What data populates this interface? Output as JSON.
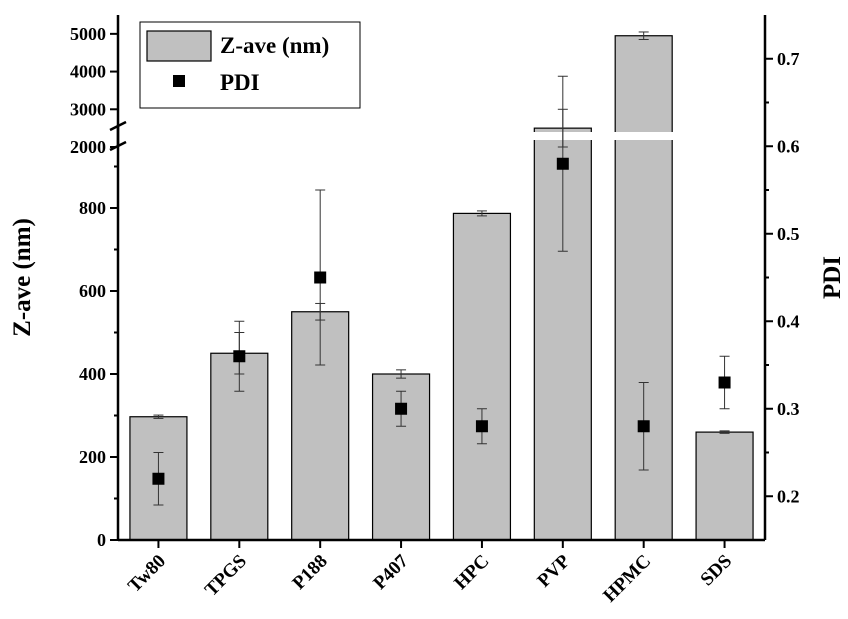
{
  "chart_data": {
    "type": "bar",
    "categories": [
      "Tw80",
      "TPGS",
      "P188",
      "P407",
      "HPC",
      "PVP",
      "HPMC",
      "SDS"
    ],
    "series": [
      {
        "name": "Z-ave (nm)",
        "axis": "left",
        "kind": "bar",
        "values": [
          297,
          450,
          550,
          400,
          787,
          2500,
          4950,
          260
        ],
        "errors": [
          4,
          50,
          20,
          10,
          6,
          500,
          100,
          3
        ]
      },
      {
        "name": "PDI",
        "axis": "right",
        "kind": "scatter",
        "values": [
          0.22,
          0.36,
          0.45,
          0.3,
          0.28,
          0.58,
          0.28,
          0.33
        ],
        "errors": [
          0.03,
          0.04,
          0.1,
          0.02,
          0.02,
          0.1,
          0.05,
          0.03
        ]
      }
    ],
    "ylabel": "Z-ave (nm)",
    "y2label": "PDI",
    "xlabel": "",
    "y_axis": {
      "scale": "broken",
      "lower_segment": [
        0,
        1000
      ],
      "upper_segment": [
        2000,
        5500
      ],
      "break_at": 1000,
      "tick_labels": [
        0,
        200,
        400,
        600,
        800,
        2000,
        3000,
        4000,
        5000
      ]
    },
    "y2lim": [
      0.15,
      0.75
    ],
    "y2_tick_labels": [
      0.2,
      0.3,
      0.4,
      0.5,
      0.6,
      0.7
    ],
    "bar_color": "#c0c0c0",
    "marker_color": "#000000",
    "legend_position": "top-left",
    "grid": false
  }
}
